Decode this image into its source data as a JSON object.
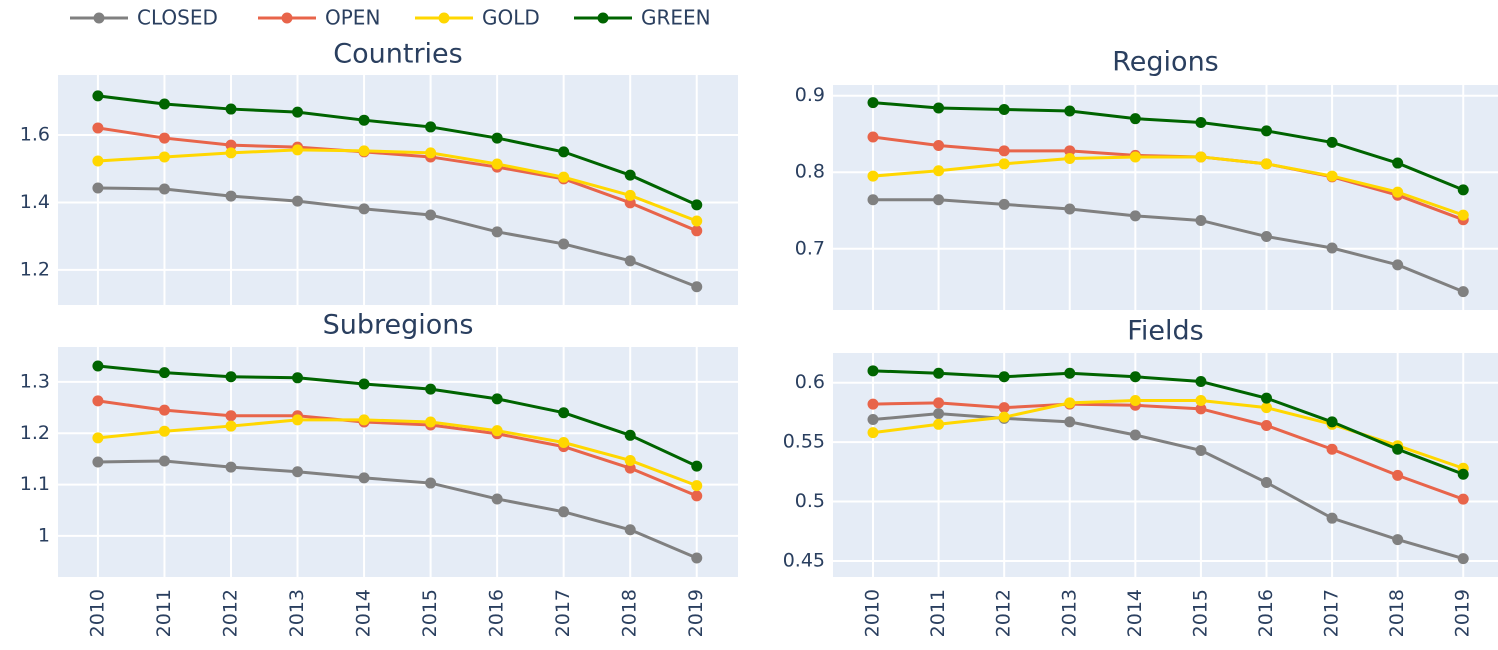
{
  "chart_data": [
    {
      "type": "line",
      "title": "Countries",
      "x": [
        2010,
        2011,
        2012,
        2013,
        2014,
        2015,
        2016,
        2017,
        2018,
        2019
      ],
      "xlim": [
        2009.4,
        2019.62
      ],
      "xticks": [
        2010,
        2011,
        2012,
        2013,
        2014,
        2015,
        2016,
        2017,
        2018,
        2019
      ],
      "ylim": [
        1.096,
        1.778
      ],
      "yticks": [
        1.2,
        1.4,
        1.6
      ],
      "grid": true,
      "series": [
        {
          "name": "CLOSED",
          "color": "#808080",
          "values": [
            1.443,
            1.44,
            1.419,
            1.404,
            1.381,
            1.363,
            1.313,
            1.277,
            1.227,
            1.15
          ]
        },
        {
          "name": "OPEN",
          "color": "#e8644a",
          "values": [
            1.621,
            1.591,
            1.57,
            1.564,
            1.55,
            1.535,
            1.505,
            1.47,
            1.399,
            1.316
          ]
        },
        {
          "name": "GOLD",
          "color": "#ffd700",
          "values": [
            1.523,
            1.535,
            1.547,
            1.556,
            1.553,
            1.547,
            1.514,
            1.475,
            1.421,
            1.345
          ]
        },
        {
          "name": "GREEN",
          "color": "#006400",
          "values": [
            1.716,
            1.692,
            1.677,
            1.668,
            1.644,
            1.624,
            1.591,
            1.55,
            1.481,
            1.393
          ]
        }
      ]
    },
    {
      "type": "line",
      "title": "Regions",
      "x": [
        2010,
        2011,
        2012,
        2013,
        2014,
        2015,
        2016,
        2017,
        2018,
        2019
      ],
      "xlim": [
        2009.39,
        2019.53
      ],
      "xticks": [
        2010,
        2011,
        2012,
        2013,
        2014,
        2015,
        2016,
        2017,
        2018,
        2019
      ],
      "ylim": [
        0.62,
        0.914
      ],
      "yticks": [
        0.7,
        0.8,
        0.9
      ],
      "grid": true,
      "series": [
        {
          "name": "CLOSED",
          "color": "#808080",
          "values": [
            0.764,
            0.764,
            0.758,
            0.752,
            0.743,
            0.737,
            0.716,
            0.701,
            0.679,
            0.644
          ]
        },
        {
          "name": "OPEN",
          "color": "#e8644a",
          "values": [
            0.846,
            0.835,
            0.828,
            0.828,
            0.822,
            0.82,
            0.811,
            0.794,
            0.77,
            0.738
          ]
        },
        {
          "name": "GOLD",
          "color": "#ffd700",
          "values": [
            0.795,
            0.802,
            0.811,
            0.818,
            0.82,
            0.82,
            0.811,
            0.795,
            0.774,
            0.744
          ]
        },
        {
          "name": "GREEN",
          "color": "#006400",
          "values": [
            0.891,
            0.884,
            0.882,
            0.88,
            0.87,
            0.865,
            0.854,
            0.839,
            0.812,
            0.777
          ]
        }
      ]
    },
    {
      "type": "line",
      "title": "Subregions",
      "x": [
        2010,
        2011,
        2012,
        2013,
        2014,
        2015,
        2016,
        2017,
        2018,
        2019
      ],
      "xlim": [
        2009.4,
        2019.62
      ],
      "xticks": [
        2010,
        2011,
        2012,
        2013,
        2014,
        2015,
        2016,
        2017,
        2018,
        2019
      ],
      "ylim": [
        0.92,
        1.368
      ],
      "yticks": [
        1,
        1.1,
        1.2,
        1.3
      ],
      "grid": true,
      "series": [
        {
          "name": "CLOSED",
          "color": "#808080",
          "values": [
            1.144,
            1.146,
            1.134,
            1.125,
            1.113,
            1.103,
            1.072,
            1.047,
            1.012,
            0.957
          ]
        },
        {
          "name": "OPEN",
          "color": "#e8644a",
          "values": [
            1.263,
            1.245,
            1.234,
            1.234,
            1.222,
            1.216,
            1.199,
            1.174,
            1.132,
            1.078
          ]
        },
        {
          "name": "GOLD",
          "color": "#ffd700",
          "values": [
            1.191,
            1.204,
            1.214,
            1.226,
            1.226,
            1.222,
            1.205,
            1.182,
            1.147,
            1.098
          ]
        },
        {
          "name": "GREEN",
          "color": "#006400",
          "values": [
            1.331,
            1.318,
            1.31,
            1.308,
            1.296,
            1.286,
            1.267,
            1.24,
            1.196,
            1.136
          ]
        }
      ]
    },
    {
      "type": "line",
      "title": "Fields",
      "x": [
        2010,
        2011,
        2012,
        2013,
        2014,
        2015,
        2016,
        2017,
        2018,
        2019
      ],
      "xlim": [
        2009.39,
        2019.53
      ],
      "xticks": [
        2010,
        2011,
        2012,
        2013,
        2014,
        2015,
        2016,
        2017,
        2018,
        2019
      ],
      "ylim": [
        0.4365,
        0.625
      ],
      "yticks": [
        0.45,
        0.5,
        0.55,
        0.6
      ],
      "grid": true,
      "series": [
        {
          "name": "CLOSED",
          "color": "#808080",
          "values": [
            0.569,
            0.574,
            0.57,
            0.567,
            0.556,
            0.543,
            0.516,
            0.486,
            0.468,
            0.452
          ]
        },
        {
          "name": "OPEN",
          "color": "#e8644a",
          "values": [
            0.582,
            0.583,
            0.579,
            0.582,
            0.581,
            0.578,
            0.564,
            0.544,
            0.522,
            0.502
          ]
        },
        {
          "name": "GOLD",
          "color": "#ffd700",
          "values": [
            0.558,
            0.565,
            0.571,
            0.583,
            0.585,
            0.585,
            0.579,
            0.565,
            0.547,
            0.528
          ]
        },
        {
          "name": "GREEN",
          "color": "#006400",
          "values": [
            0.61,
            0.608,
            0.605,
            0.608,
            0.605,
            0.601,
            0.587,
            0.567,
            0.544,
            0.523
          ]
        }
      ]
    }
  ]
}
